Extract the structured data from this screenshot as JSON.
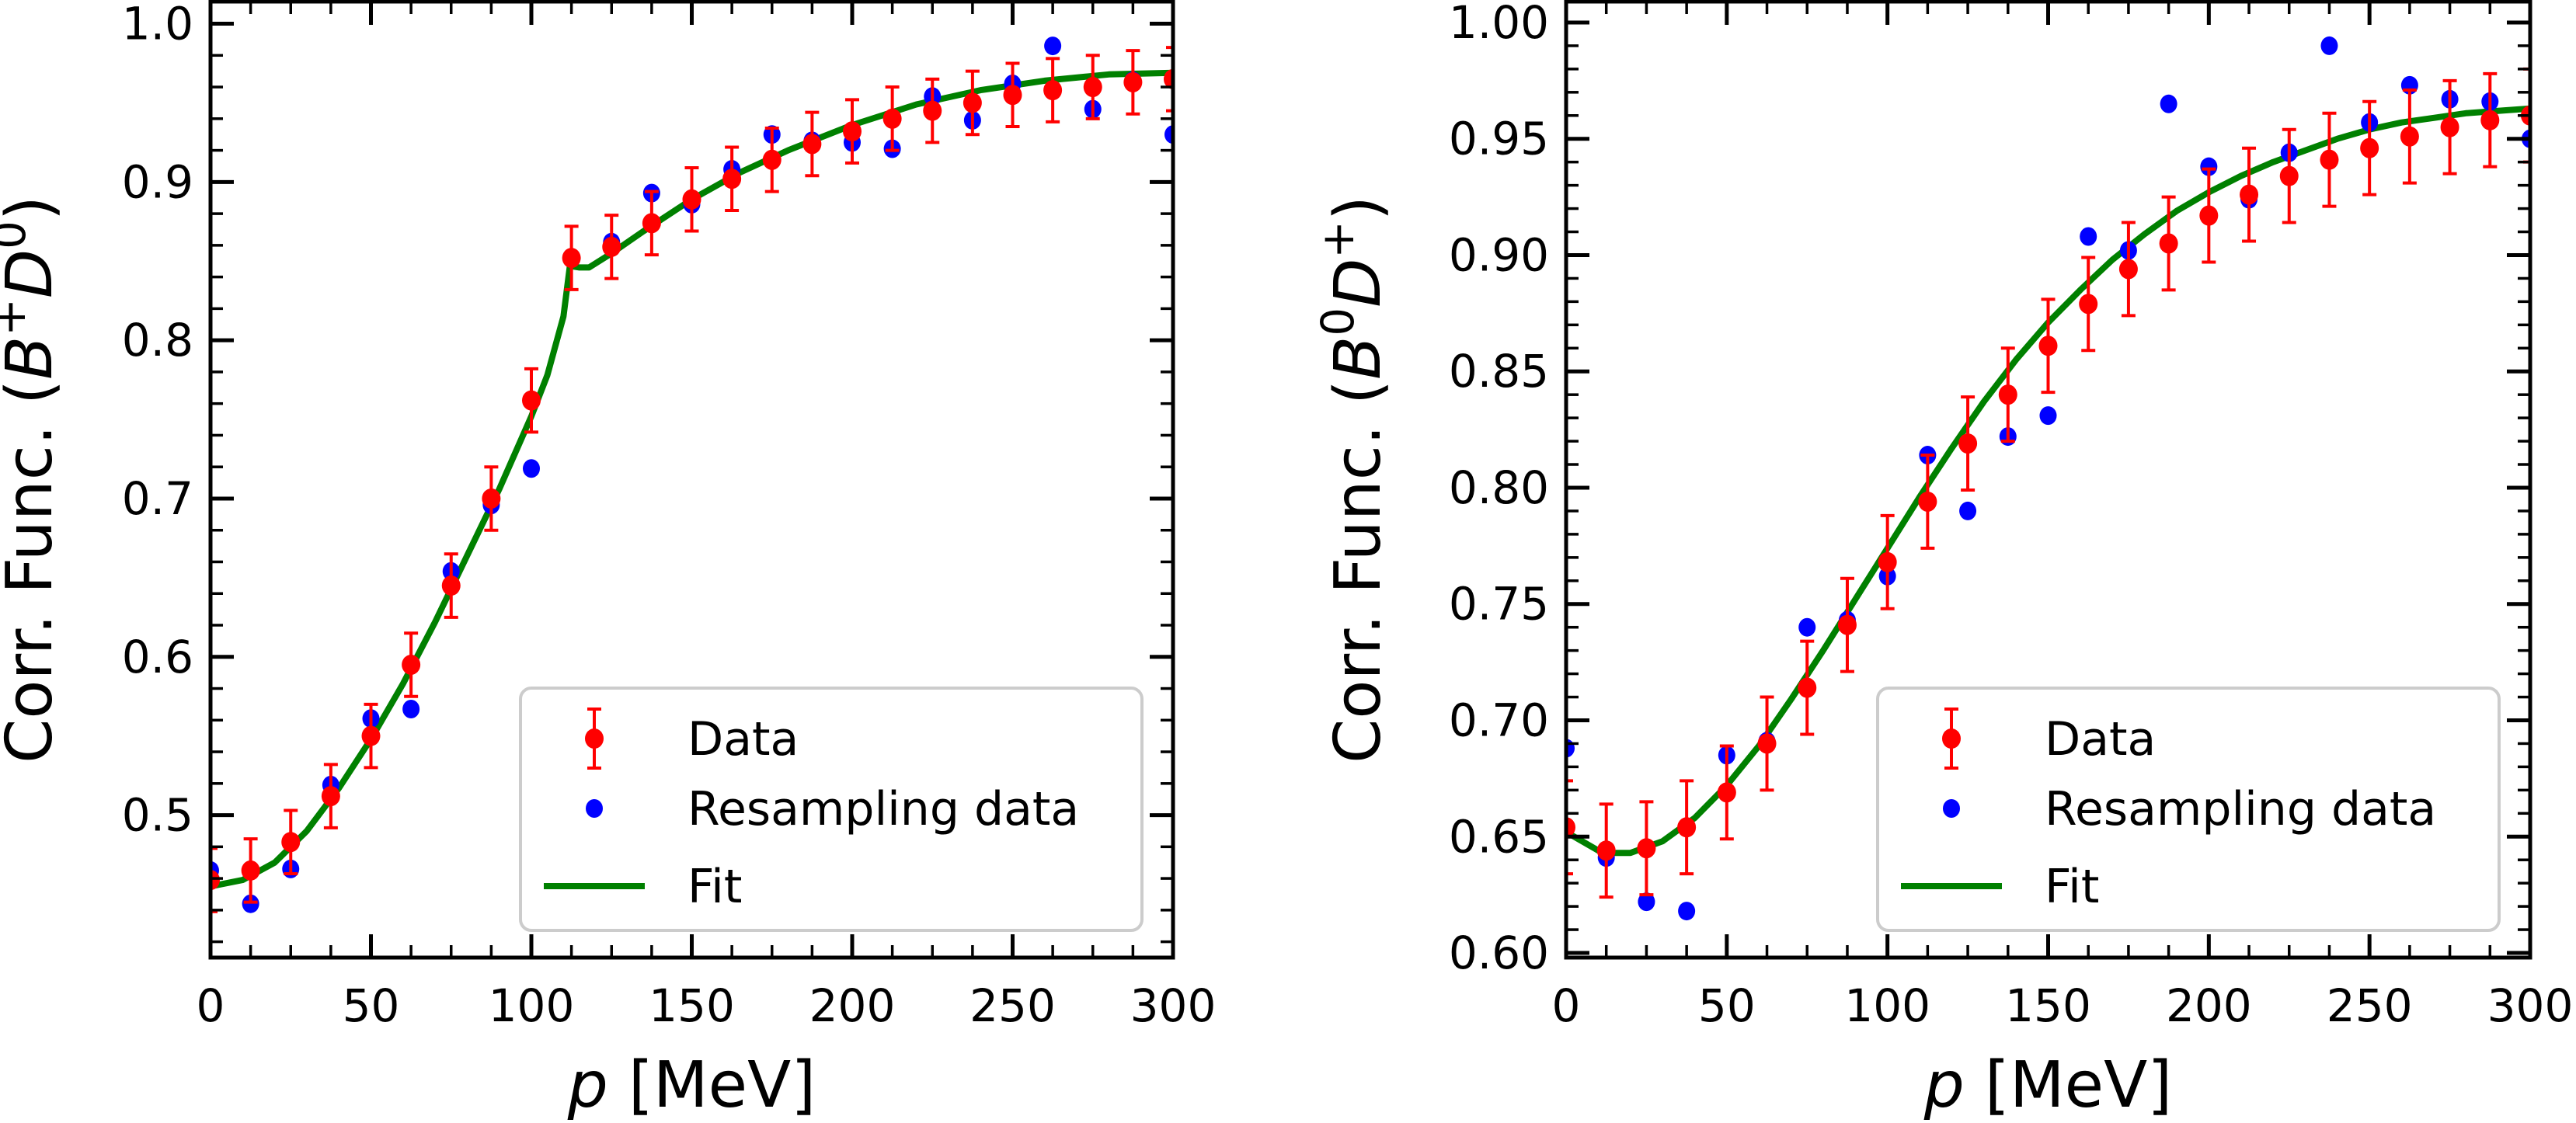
{
  "colors": {
    "data": "#ff0000",
    "resampling": "#0000ff",
    "fit": "#008000",
    "legend_border": "#cccccc"
  },
  "chart_data": [
    {
      "type": "scatter",
      "title": "",
      "xlabel": "p [MeV]",
      "xlabel_italic": "p",
      "xlabel_unit": " [MeV]",
      "ylabel": "Corr. Func. (B^+ D^0)",
      "ylabel_prefix": "Corr. Func. (",
      "ylabel_b": "B",
      "ylabel_bsup": "+",
      "ylabel_d": "D",
      "ylabel_dsup": "0",
      "ylabel_suffix": ")",
      "xlim": [
        0,
        300
      ],
      "ylim": [
        0.41,
        1.014
      ],
      "xticks": [
        0,
        50,
        100,
        150,
        200,
        250,
        300
      ],
      "xtick_labels": [
        "0",
        "50",
        "100",
        "150",
        "200",
        "250",
        "300"
      ],
      "yticks": [
        0.5,
        0.6,
        0.7,
        0.8,
        0.9,
        1.0
      ],
      "ytick_labels": [
        "0.5",
        "0.6",
        "0.7",
        "0.8",
        "0.9",
        "1.0"
      ],
      "legend": {
        "position": "lower-right",
        "entries": [
          "Data",
          "Resampling data",
          "Fit"
        ]
      },
      "x": [
        0,
        12.5,
        25,
        37.5,
        50,
        62.5,
        75,
        87.5,
        100,
        112.5,
        125,
        137.5,
        150,
        162.5,
        175,
        187.5,
        200,
        212.5,
        225,
        237.5,
        250,
        262.5,
        275,
        287.5,
        300
      ],
      "series": [
        {
          "name": "Data",
          "kind": "errorbar",
          "values": [
            0.459,
            0.465,
            0.483,
            0.512,
            0.55,
            0.595,
            0.645,
            0.7,
            0.762,
            0.852,
            0.859,
            0.874,
            0.889,
            0.902,
            0.914,
            0.924,
            0.932,
            0.94,
            0.945,
            0.95,
            0.955,
            0.958,
            0.96,
            0.963,
            0.965
          ],
          "error": 0.02
        },
        {
          "name": "Resampling data",
          "kind": "scatter",
          "values": [
            0.465,
            0.444,
            0.466,
            0.519,
            0.561,
            0.567,
            0.654,
            0.696,
            0.719,
            0.852,
            0.862,
            0.893,
            0.886,
            0.908,
            0.93,
            0.926,
            0.925,
            0.921,
            0.954,
            0.939,
            0.962,
            0.986,
            0.946,
            0.964,
            0.93
          ]
        },
        {
          "name": "Fit",
          "kind": "line",
          "x": [
            0,
            10,
            20,
            30,
            40,
            50,
            60,
            70,
            80,
            90,
            100,
            105,
            110,
            112,
            115,
            118,
            125,
            135,
            150,
            165,
            180,
            200,
            220,
            240,
            260,
            280,
            300
          ],
          "values": [
            0.455,
            0.459,
            0.47,
            0.49,
            0.517,
            0.548,
            0.583,
            0.622,
            0.664,
            0.706,
            0.752,
            0.778,
            0.815,
            0.847,
            0.846,
            0.846,
            0.855,
            0.869,
            0.889,
            0.906,
            0.92,
            0.936,
            0.949,
            0.958,
            0.964,
            0.968,
            0.969
          ]
        }
      ]
    },
    {
      "type": "scatter",
      "title": "",
      "xlabel": "p [MeV]",
      "xlabel_italic": "p",
      "xlabel_unit": " [MeV]",
      "ylabel": "Corr. Func. (B^0 D^+)",
      "ylabel_prefix": "Corr. Func. (",
      "ylabel_b": "B",
      "ylabel_bsup": "0",
      "ylabel_d": "D",
      "ylabel_dsup": "+",
      "ylabel_suffix": ")",
      "xlim": [
        0,
        300
      ],
      "ylim": [
        0.598,
        1.009
      ],
      "xticks": [
        0,
        50,
        100,
        150,
        200,
        250,
        300
      ],
      "xtick_labels": [
        "0",
        "50",
        "100",
        "150",
        "200",
        "250",
        "300"
      ],
      "yticks": [
        0.6,
        0.65,
        0.7,
        0.75,
        0.8,
        0.85,
        0.9,
        0.95,
        1.0
      ],
      "ytick_labels": [
        "0.60",
        "0.65",
        "0.70",
        "0.75",
        "0.80",
        "0.85",
        "0.90",
        "0.95",
        "1.00"
      ],
      "legend": {
        "position": "lower-right",
        "entries": [
          "Data",
          "Resampling data",
          "Fit"
        ]
      },
      "x": [
        0,
        12.5,
        25,
        37.5,
        50,
        62.5,
        75,
        87.5,
        100,
        112.5,
        125,
        137.5,
        150,
        162.5,
        175,
        187.5,
        200,
        212.5,
        225,
        237.5,
        250,
        262.5,
        275,
        287.5,
        300
      ],
      "series": [
        {
          "name": "Data",
          "kind": "errorbar",
          "values": [
            0.654,
            0.644,
            0.645,
            0.654,
            0.669,
            0.69,
            0.714,
            0.741,
            0.768,
            0.794,
            0.819,
            0.84,
            0.861,
            0.879,
            0.894,
            0.905,
            0.917,
            0.926,
            0.934,
            0.941,
            0.946,
            0.951,
            0.955,
            0.958,
            0.96
          ],
          "error": 0.02
        },
        {
          "name": "Resampling data",
          "kind": "scatter",
          "values": [
            0.688,
            0.641,
            0.622,
            0.618,
            0.685,
            0.691,
            0.74,
            0.743,
            0.762,
            0.814,
            0.79,
            0.822,
            0.831,
            0.908,
            0.902,
            0.965,
            0.938,
            0.924,
            0.944,
            0.99,
            0.957,
            0.973,
            0.967,
            0.966,
            0.95
          ]
        },
        {
          "name": "Fit",
          "kind": "line",
          "x": [
            0,
            10,
            15,
            20,
            30,
            40,
            50,
            60,
            70,
            80,
            90,
            100,
            110,
            120,
            130,
            140,
            150,
            160,
            170,
            180,
            190,
            200,
            210,
            220,
            230,
            240,
            250,
            260,
            270,
            280,
            290,
            300
          ],
          "values": [
            0.652,
            0.644,
            0.643,
            0.643,
            0.648,
            0.658,
            0.672,
            0.689,
            0.709,
            0.73,
            0.752,
            0.774,
            0.796,
            0.817,
            0.837,
            0.855,
            0.871,
            0.885,
            0.898,
            0.909,
            0.919,
            0.927,
            0.934,
            0.94,
            0.945,
            0.95,
            0.954,
            0.957,
            0.959,
            0.961,
            0.962,
            0.963
          ]
        }
      ]
    }
  ]
}
